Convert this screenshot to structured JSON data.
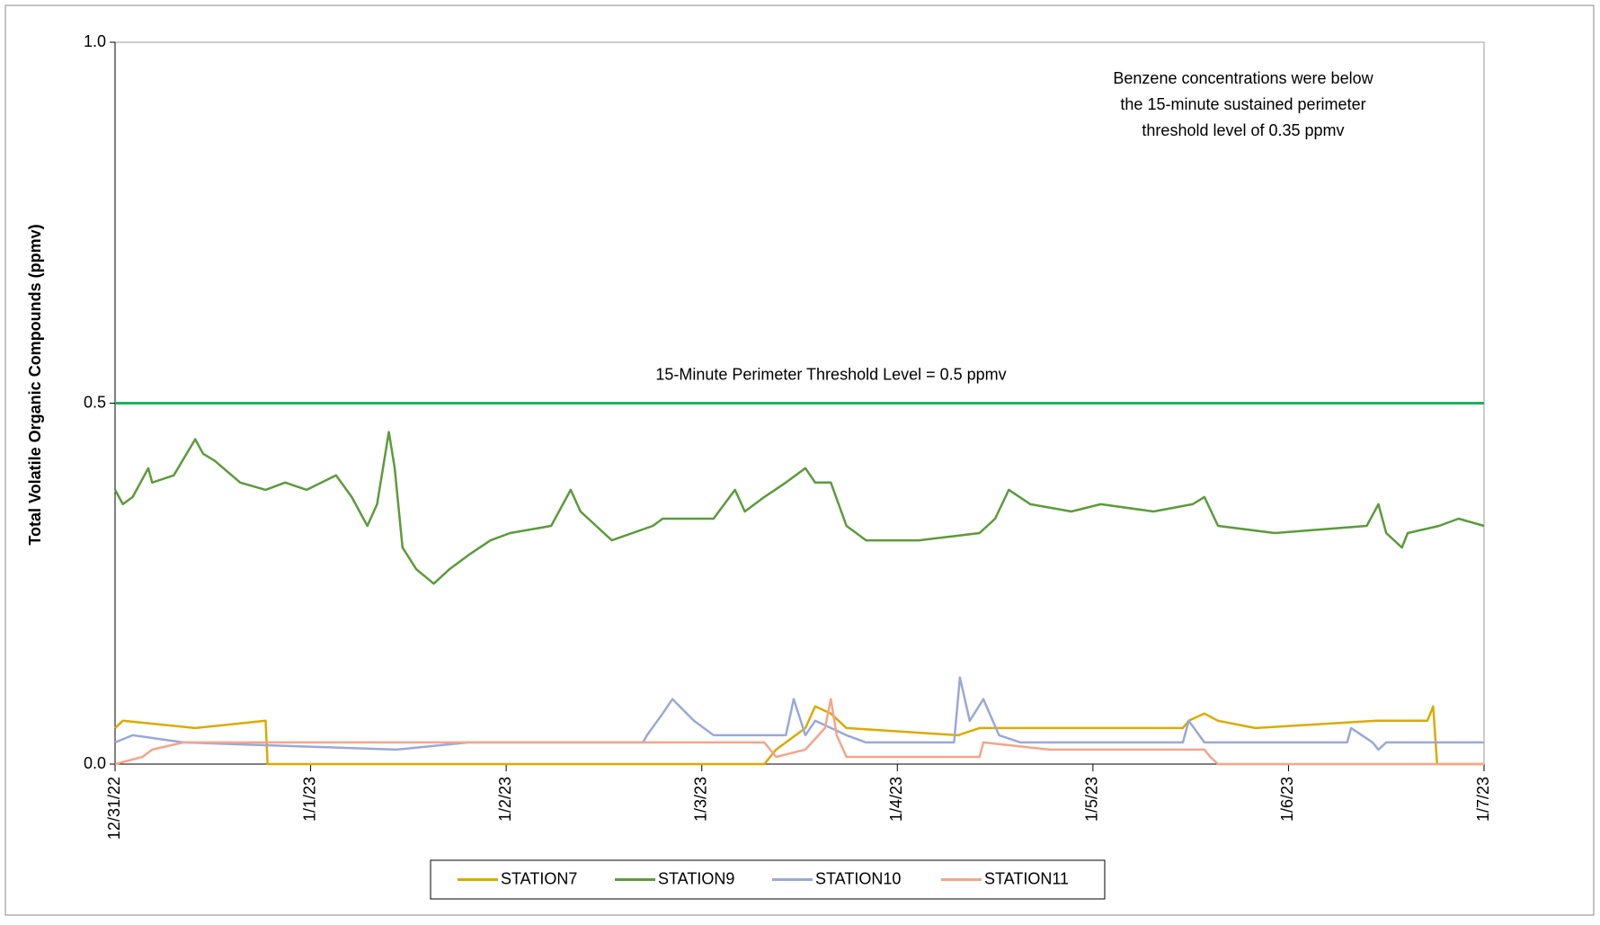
{
  "chart_data": {
    "type": "line",
    "y_label": "Total Volatile Organic Compounds (ppmv)",
    "xlim": [
      0,
      7
    ],
    "xticks": [
      {
        "value": 0,
        "label": "12/31/22"
      },
      {
        "value": 1,
        "label": "1/1/23"
      },
      {
        "value": 2,
        "label": "1/2/23"
      },
      {
        "value": 3,
        "label": "1/3/23"
      },
      {
        "value": 4,
        "label": "1/4/23"
      },
      {
        "value": 5,
        "label": "1/5/23"
      },
      {
        "value": 6,
        "label": "1/6/23"
      },
      {
        "value": 7,
        "label": "1/7/23"
      }
    ],
    "ylim": [
      0,
      1
    ],
    "yticks": [
      {
        "value": 0,
        "label": "0.0"
      },
      {
        "value": 0.5,
        "label": "0.5"
      },
      {
        "value": 1,
        "label": "1.0"
      }
    ],
    "threshold": {
      "value": 0.5,
      "label": "15-Minute Perimeter Threshold Level = 0.5 ppmv",
      "color": "#1db35a"
    },
    "annotation": [
      "Benzene concentrations were below",
      "the 15-minute sustained perimeter",
      "threshold level of 0.35 ppmv"
    ],
    "legend": "bottom",
    "series": [
      {
        "name": "STATION7",
        "color": "#dcaa00",
        "x": [
          0,
          0.04,
          0.41,
          0.77,
          0.78,
          3.32,
          3.38,
          3.43,
          3.53,
          3.58,
          3.66,
          3.74,
          4.31,
          4.42,
          5.46,
          5.49,
          5.57,
          5.64,
          5.83,
          6.45,
          6.71,
          6.74,
          6.76,
          7
        ],
        "values": [
          0.05,
          0.06,
          0.05,
          0.06,
          0,
          0,
          0.02,
          0.03,
          0.05,
          0.08,
          0.07,
          0.05,
          0.04,
          0.05,
          0.05,
          0.06,
          0.07,
          0.06,
          0.05,
          0.06,
          0.06,
          0.08,
          0,
          0
        ]
      },
      {
        "name": "STATION9",
        "color": "#5b9b3b",
        "x": [
          0,
          0.04,
          0.09,
          0.17,
          0.19,
          0.3,
          0.41,
          0.45,
          0.51,
          0.64,
          0.77,
          0.87,
          0.98,
          1.13,
          1.21,
          1.29,
          1.34,
          1.4,
          1.43,
          1.47,
          1.54,
          1.63,
          1.71,
          1.81,
          1.92,
          2.02,
          2.23,
          2.33,
          2.38,
          2.54,
          2.75,
          2.8,
          3.06,
          3.17,
          3.22,
          3.32,
          3.43,
          3.53,
          3.58,
          3.66,
          3.74,
          3.84,
          4.11,
          4.42,
          4.5,
          4.57,
          4.68,
          4.89,
          5.04,
          5.31,
          5.51,
          5.57,
          5.64,
          5.93,
          6.4,
          6.46,
          6.5,
          6.58,
          6.61,
          6.77,
          6.87,
          7
        ],
        "values": [
          0.38,
          0.36,
          0.37,
          0.41,
          0.39,
          0.4,
          0.45,
          0.43,
          0.42,
          0.39,
          0.38,
          0.39,
          0.38,
          0.4,
          0.37,
          0.33,
          0.36,
          0.46,
          0.41,
          0.3,
          0.27,
          0.25,
          0.27,
          0.29,
          0.31,
          0.32,
          0.33,
          0.38,
          0.35,
          0.31,
          0.33,
          0.34,
          0.34,
          0.38,
          0.35,
          0.37,
          0.39,
          0.41,
          0.39,
          0.39,
          0.33,
          0.31,
          0.31,
          0.32,
          0.34,
          0.38,
          0.36,
          0.35,
          0.36,
          0.35,
          0.36,
          0.37,
          0.33,
          0.32,
          0.33,
          0.36,
          0.32,
          0.3,
          0.32,
          0.33,
          0.34,
          0.33
        ]
      },
      {
        "name": "STATION10",
        "color": "#9aa8d8",
        "x": [
          0,
          0.09,
          0.35,
          1.44,
          1.81,
          2.7,
          2.72,
          2.8,
          2.85,
          2.96,
          3.06,
          3.43,
          3.47,
          3.53,
          3.58,
          3.74,
          3.84,
          4.29,
          4.32,
          4.37,
          4.44,
          4.52,
          4.63,
          5.46,
          5.49,
          5.57,
          6.3,
          6.32,
          6.43,
          6.46,
          6.5,
          7
        ],
        "values": [
          0.03,
          0.04,
          0.03,
          0.02,
          0.03,
          0.03,
          0.04,
          0.07,
          0.09,
          0.06,
          0.04,
          0.04,
          0.09,
          0.04,
          0.06,
          0.04,
          0.03,
          0.03,
          0.12,
          0.06,
          0.09,
          0.04,
          0.03,
          0.03,
          0.06,
          0.03,
          0.03,
          0.05,
          0.03,
          0.02,
          0.03,
          0.03
        ]
      },
      {
        "name": "STATION11",
        "color": "#f4a58a",
        "x": [
          0,
          0.14,
          0.19,
          0.35,
          3.32,
          3.38,
          3.53,
          3.63,
          3.66,
          3.69,
          3.74,
          4.42,
          4.44,
          4.78,
          5.57,
          5.6,
          5.64,
          7
        ],
        "values": [
          0,
          0.01,
          0.02,
          0.03,
          0.03,
          0.01,
          0.02,
          0.05,
          0.09,
          0.04,
          0.01,
          0.01,
          0.03,
          0.02,
          0.02,
          0.01,
          0,
          0
        ]
      }
    ]
  }
}
